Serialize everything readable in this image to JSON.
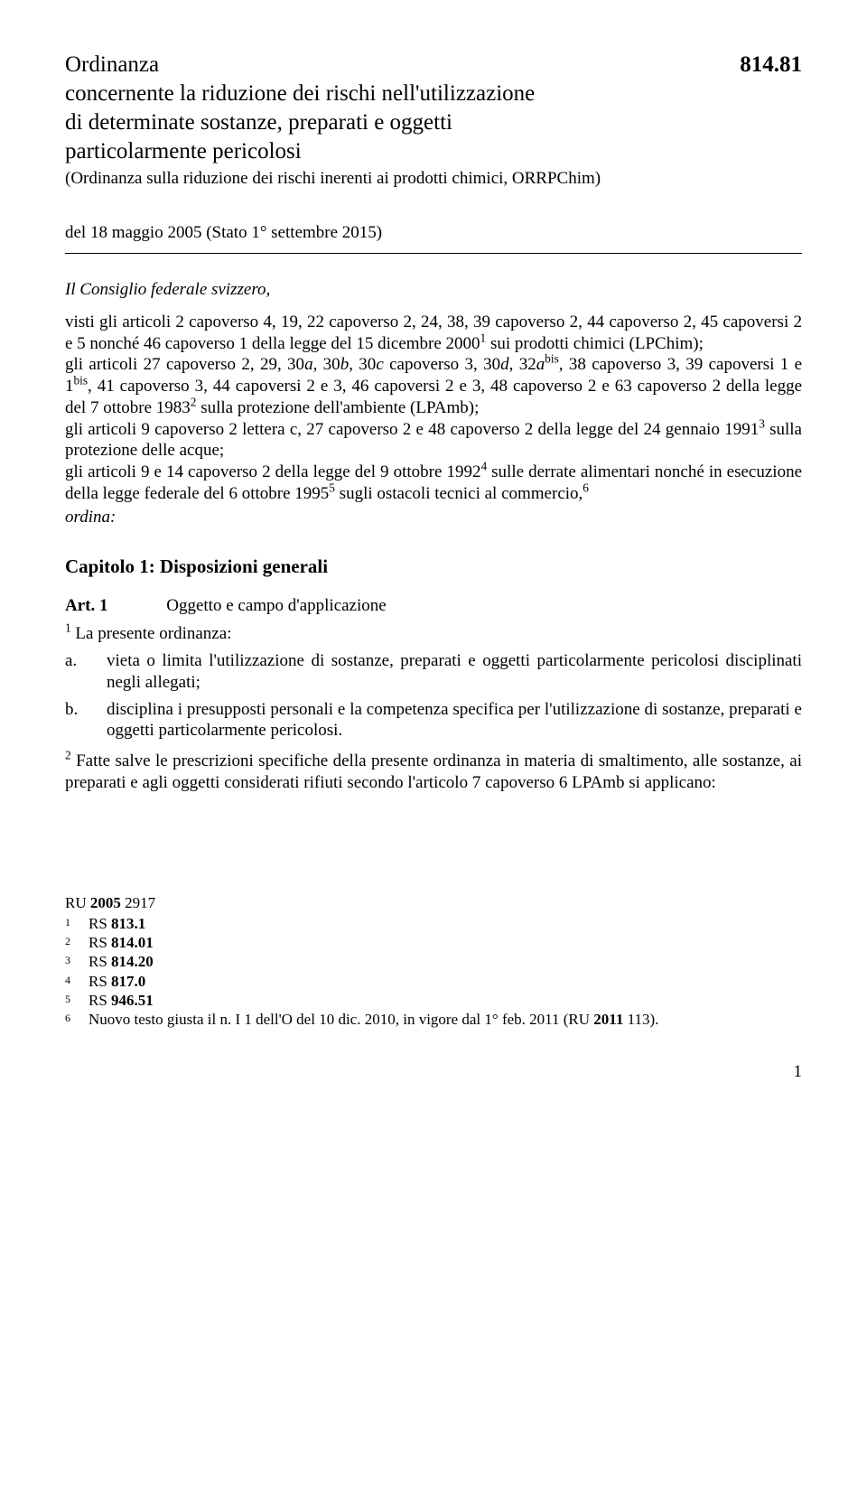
{
  "doc_number": "814.81",
  "title": {
    "line1": "Ordinanza",
    "line2": "concernente la riduzione dei rischi nell'utilizzazione",
    "line3": "di determinate sostanze, preparati e oggetti",
    "line4": "particolarmente pericolosi",
    "short": "(Ordinanza sulla riduzione dei rischi inerenti ai prodotti chimici, ORRPChim)"
  },
  "date_status": "del 18 maggio 2005 (Stato 1° settembre 2015)",
  "preamble": {
    "authority": "Il Consiglio federale svizzero,",
    "p1a": "visti gli articoli 2 capoverso 4, 19, 22 capoverso 2, 24, 38, 39 capoverso 2, 44 capoverso 2, 45 capoversi 2 e 5 nonché 46 capoverso 1 della legge del 15 dicembre 2000",
    "p1b": " sui prodotti chimici (LPChim);",
    "p2a": "gli articoli 27 capoverso 2, 29, 30",
    "p2b": ", 30",
    "p2c": ", 30",
    "p2d": " capoverso 3, 30",
    "p2e": ", 32",
    "p2f": ", 38 capoverso 3, 39 capoversi 1 e 1",
    "p2g": ", 41 capoverso 3, 44 capoversi 2 e 3, 46 capoversi 2 e 3, 48 capoverso 2 e 63 capoverso 2 della legge del 7 ottobre 1983",
    "p2h": " sulla protezione dell'ambiente (LPAmb);",
    "p3a": "gli articoli 9 capoverso 2 lettera c, 27 capoverso 2 e 48 capoverso 2 della legge del 24 gennaio 1991",
    "p3b": " sulla protezione delle acque;",
    "p4a": "gli articoli 9 e 14 capoverso 2 della legge del 9 ottobre 1992",
    "p4b": " sulle derrate alimentari nonché in esecuzione della legge federale del 6 ottobre 1995",
    "p4c": " sugli ostacoli tecnici al commercio,",
    "ordains": "ordina:"
  },
  "chapter": {
    "heading": "Capitolo 1: Disposizioni generali"
  },
  "art1": {
    "label": "Art. 1",
    "title": "Oggetto e campo d'applicazione",
    "intro": " La presente ordinanza:",
    "a": "vieta o limita l'utilizzazione di sostanze, preparati e oggetti particolarmente pericolosi disciplinati negli allegati;",
    "b": "disciplina i presupposti personali e la competenza specifica per l'utilizzazione di sostanze, preparati e oggetti particolarmente pericolosi.",
    "p2": " Fatte salve le prescrizioni specifiche della presente ordinanza in materia di smaltimento, alle sostanze, ai preparati e agli oggetti considerati rifiuti secondo l'articolo 7 capoverso 6 LPAmb si applicano:"
  },
  "footnotes": {
    "ru": "RU 2005 2917",
    "rs_label": "RS ",
    "items": [
      {
        "n": "1",
        "rs": "813.1"
      },
      {
        "n": "2",
        "rs": "814.01"
      },
      {
        "n": "3",
        "rs": "814.20"
      },
      {
        "n": "4",
        "rs": "817.0"
      },
      {
        "n": "5",
        "rs": "946.51"
      }
    ],
    "note6_a": "Nuovo testo giusta il n. I 1 dell'O del 10 dic. 2010, in vigore dal 1° feb. 2011 (RU ",
    "note6_b": "2011",
    "note6_c": " 113)."
  },
  "page": "1",
  "italic_letters": {
    "a": "a",
    "b": "b",
    "c": "c",
    "d": "d",
    "bis": "bis"
  }
}
